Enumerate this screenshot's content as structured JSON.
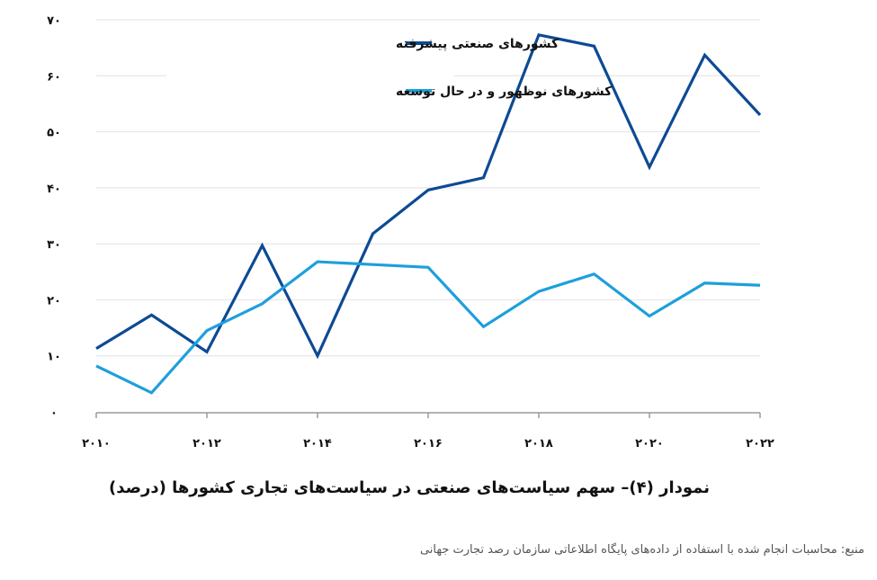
{
  "chart_data": {
    "type": "line",
    "title": "نمودار (۴)– سهم سیاست‌های صنعتی در سیاست‌های تجاری کشورها (درصد)",
    "xlabel": "",
    "ylabel": "",
    "x": [
      2010,
      2011,
      2012,
      2013,
      2014,
      2015,
      2016,
      2017,
      2018,
      2019,
      2020,
      2021,
      2022
    ],
    "x_tick_labels": [
      "۲۰۱۰",
      "۲۰۱۲",
      "۲۰۱۴",
      "۲۰۱۶",
      "۲۰۱۸",
      "۲۰۲۰",
      "۲۰۲۲"
    ],
    "x_tick_values": [
      2010,
      2012,
      2014,
      2016,
      2018,
      2020,
      2022
    ],
    "y_tick_labels": [
      "۰",
      "۱۰",
      "۲۰",
      "۳۰",
      "۴۰",
      "۵۰",
      "۶۰",
      "۷۰"
    ],
    "y_tick_values": [
      0,
      10,
      20,
      30,
      40,
      50,
      60,
      70
    ],
    "ylim": [
      0,
      70
    ],
    "grid": true,
    "legend_position": "top-left inside",
    "series": [
      {
        "name": "کشورهای صنعتی پیشرفته",
        "color": "#0d4a94",
        "values": [
          11.3,
          17.3,
          10.7,
          29.7,
          10.0,
          31.8,
          39.6,
          41.8,
          67.3,
          65.3,
          43.7,
          63.7,
          53.0
        ]
      },
      {
        "name": "کشورهای نوظهور و در حال توسعه",
        "color": "#1e9fdc",
        "values": [
          8.2,
          3.4,
          14.5,
          19.3,
          26.8,
          26.3,
          25.8,
          15.2,
          21.5,
          24.6,
          17.1,
          23.0,
          22.6
        ]
      }
    ],
    "source": "منبع: محاسبات انجام شده با استفاده از داده‌های پایگاه اطلاعاتی سازمان رصد تجارت جهانی"
  },
  "caption": "نمودار (۴)– سهم سیاست‌های صنعتی در سیاست‌های تجاری کشورها (درصد)",
  "source_note": "منبع: محاسبات انجام شده با استفاده از داده‌های پایگاه اطلاعاتی سازمان رصد تجارت جهانی",
  "legend": {
    "items": [
      {
        "label": "کشورهای صنعتی پیشرفته",
        "color": "#0d4a94"
      },
      {
        "label": "کشورهای نوظهور و در حال توسعه",
        "color": "#1e9fdc"
      }
    ]
  },
  "colors": {
    "gridline": "#e6e6e6",
    "axis": "#9a9a9a"
  }
}
